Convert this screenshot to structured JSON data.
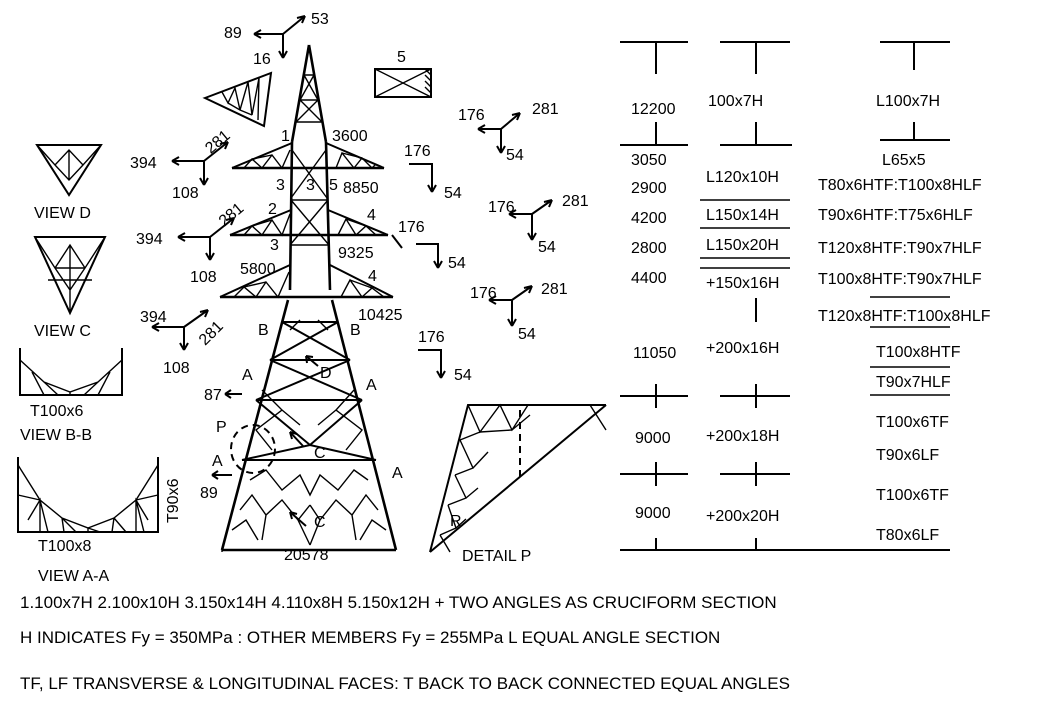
{
  "tower": {
    "numbers": {
      "n1": "1",
      "n3600": "3600",
      "n3a": "3",
      "n3b": "3",
      "n5a": "5",
      "n8850": "8850",
      "n2": "2",
      "n4a": "4",
      "n9325": "9325",
      "n3c": "3",
      "n5800": "5800",
      "n4b": "4",
      "n10425": "10425",
      "n20578": "20578",
      "n5box": "5"
    },
    "section_letters": {
      "b1": "B",
      "b2": "B",
      "a1": "A",
      "a2": "A",
      "a3": "A",
      "a4": "A",
      "d": "D",
      "c1": "C",
      "c2": "C",
      "p": "P"
    }
  },
  "loads": [
    {
      "id": "top",
      "a": "89",
      "b": "53",
      "c": "16"
    },
    {
      "id": "l1",
      "a": "394",
      "b": "281",
      "c": "108"
    },
    {
      "id": "l2",
      "a": "394",
      "b": "281",
      "c": "108"
    },
    {
      "id": "l3",
      "a": "394",
      "b": "281",
      "c": "108"
    },
    {
      "id": "r1",
      "a": "176",
      "b": "281",
      "c": "54"
    },
    {
      "id": "r2",
      "a": "176",
      "c": "54"
    },
    {
      "id": "r3",
      "a": "176",
      "b": "281",
      "c": "54"
    },
    {
      "id": "r4",
      "a": "176",
      "c": "54"
    },
    {
      "id": "r5",
      "a": "176",
      "b": "281",
      "c": "54"
    },
    {
      "id": "r6",
      "a": "176",
      "c": "54"
    },
    {
      "id": "a87",
      "a": "87"
    },
    {
      "id": "a89",
      "a": "89"
    }
  ],
  "views": {
    "view_d": "VIEW D",
    "view_c": "VIEW C",
    "view_bb_section": "T100x6",
    "view_bb": "VIEW B-B",
    "view_aa_section_side": "T90x6",
    "view_aa_section": "T100x8",
    "view_aa": "VIEW A-A",
    "detail_p": "DETAIL P",
    "detail_r": "R"
  },
  "table": {
    "col1": [
      "12200",
      "3050",
      "2900",
      "4200",
      "2800",
      "4400",
      "11050",
      "9000",
      "9000"
    ],
    "col2": [
      "100x7H",
      "L120x10H",
      "L150x14H",
      "L150x20H",
      "+150x16H",
      "+200x16H",
      "+200x18H",
      "+200x20H"
    ],
    "col3": [
      "L100x7H",
      "L65x5",
      "T80x6HTF:T100x8HLF",
      "T90x6HTF:T75x6HLF",
      "T120x8HTF:T90x7HLF",
      "T100x8HTF:T90x7HLF",
      "T120x8HTF:T100x8HLF",
      "T100x8HTF",
      "T90x7HLF",
      "T100x6TF",
      "T90x6LF",
      "T100x6TF",
      "T80x6LF"
    ]
  },
  "notes": {
    "line1": "1.100x7H  2.100x10H  3.150x14H  4.110x8H  5.150x12H + TWO ANGLES AS CRUCIFORM SECTION",
    "line2": "H INDICATES Fy = 350MPa :  OTHER MEMBERS Fy = 255MPa   L EQUAL ANGLE SECTION",
    "line3": "TF, LF TRANSVERSE & LONGITUDINAL FACES:  T BACK TO BACK CONNECTED EQUAL ANGLES"
  }
}
